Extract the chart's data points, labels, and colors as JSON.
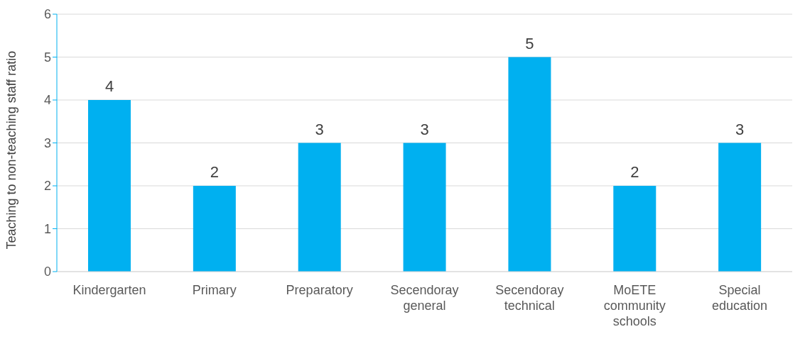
{
  "chart_data": {
    "type": "bar",
    "ylabel": "Teaching to non-teaching staff ratio",
    "categories": [
      "Kindergarten",
      "Primary",
      "Preparatory",
      "Secendoray general",
      "Secendoray technical",
      "MoETE community schools",
      "Special education"
    ],
    "values": [
      4,
      2,
      3,
      3,
      5,
      2,
      3
    ],
    "color": "#00b0f0",
    "ylim": [
      0,
      6
    ],
    "yticks": [
      0,
      1,
      2,
      3,
      4,
      5,
      6
    ],
    "grid": "y",
    "data_labels": true
  }
}
